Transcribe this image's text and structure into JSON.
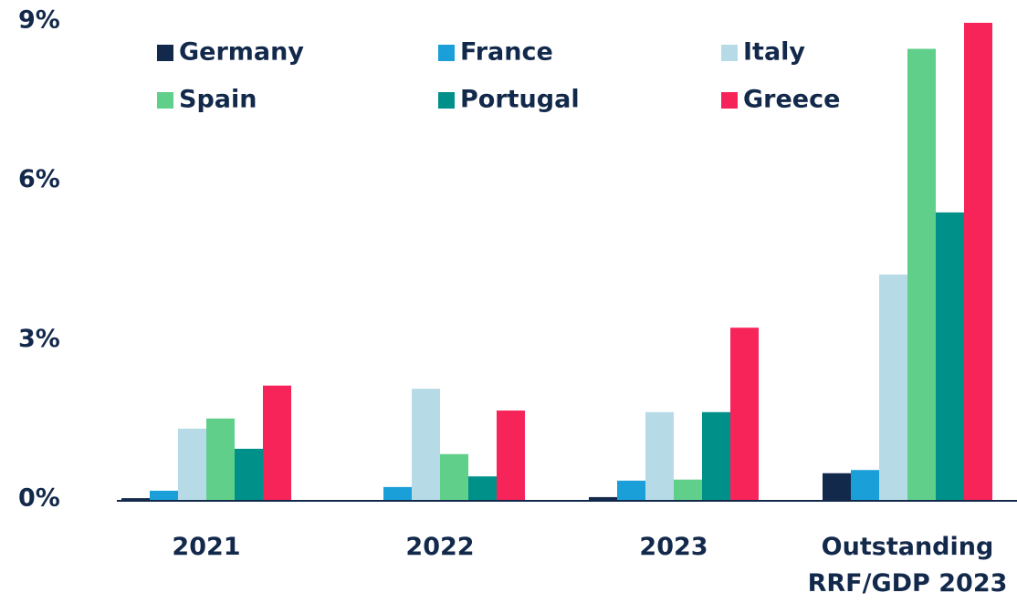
{
  "chart_data": {
    "type": "bar",
    "categories": [
      "2021",
      "2022",
      "2023",
      "Outstanding\nRRF/GDP 2023"
    ],
    "series": [
      {
        "name": "Germany",
        "color": "#13294b",
        "values": [
          0.05,
          0,
          0.07,
          0.52
        ]
      },
      {
        "name": "France",
        "color": "#1a9fd8",
        "values": [
          0.19,
          0.26,
          0.38,
          0.58
        ]
      },
      {
        "name": "Italy",
        "color": "#b7dbe6",
        "values": [
          1.36,
          2.11,
          1.67,
          4.26
        ]
      },
      {
        "name": "Spain",
        "color": "#5fcf8a",
        "values": [
          1.55,
          0.88,
          0.4,
          8.51
        ]
      },
      {
        "name": "Portugal",
        "color": "#00908a",
        "values": [
          0.98,
          0.46,
          1.67,
          5.43
        ]
      },
      {
        "name": "Greece",
        "color": "#f7245a",
        "values": [
          2.17,
          1.7,
          3.26,
          9.0
        ]
      }
    ],
    "ylim": [
      0,
      9
    ],
    "yticks": [
      {
        "value": 0,
        "label": "0%"
      },
      {
        "value": 3,
        "label": "3%"
      },
      {
        "value": 6,
        "label": "6%"
      },
      {
        "value": 9,
        "label": "9%"
      }
    ],
    "grid": false
  }
}
